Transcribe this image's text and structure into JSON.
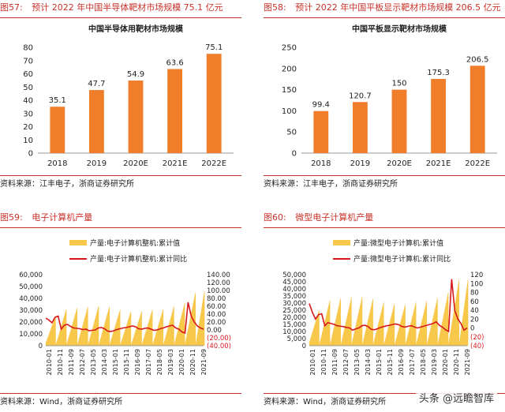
{
  "panels": [
    {
      "fig_num": "图57:",
      "fig_title": "预计 2022 年中国半导体靶材市场规模 75.1 亿元",
      "source": "资料来源：江丰电子，浙商证券研究所"
    },
    {
      "fig_num": "图58:",
      "fig_title": "预计 2022 年中国平板显示靶材市场规模 206.5 亿元",
      "source": "资料来源：江丰电子，浙商证券研究所"
    },
    {
      "fig_num": "图59:",
      "fig_title": "电子计算机产量",
      "source": "资料来源：Wind，浙商证券研究所"
    },
    {
      "fig_num": "图60:",
      "fig_title": "微型电子计算机产量",
      "source": "资料来源：Wind，浙商证券研究所"
    }
  ],
  "watermark": "头条 @远瞻智库",
  "colors": {
    "bar": "#f07d2a",
    "line": "#d7191c",
    "area": "#f7c84a",
    "heading": "#c8322a"
  },
  "chart_data": [
    {
      "type": "bar",
      "title": "中国半导体用靶材市场规模",
      "categories": [
        "2018",
        "2019",
        "2020E",
        "2021E",
        "2022E"
      ],
      "values": [
        35.1,
        47.7,
        54.9,
        63.6,
        75.1
      ],
      "value_labels": [
        "35.1",
        "47.7",
        "54.9",
        "63.6",
        "75.1"
      ],
      "ylim": [
        0,
        80
      ],
      "yticks": [
        0,
        10,
        20,
        30,
        40,
        50,
        60,
        70,
        80
      ],
      "grid": false
    },
    {
      "type": "bar",
      "title": "中国平板显示靶材市场规模",
      "categories": [
        "2018",
        "2019",
        "2020E",
        "2021E",
        "2022E"
      ],
      "values": [
        99.4,
        120.7,
        150,
        175.3,
        206.5
      ],
      "value_labels": [
        "99.4",
        "120.7",
        "150",
        "175.3",
        "206.5"
      ],
      "ylim": [
        0,
        250
      ],
      "yticks": [
        0,
        50,
        100,
        150,
        200,
        250
      ],
      "grid": false
    },
    {
      "type": "area",
      "legend": [
        "产量:电子计算机整机:累计值",
        "产量:电子计算机整机:累计同比"
      ],
      "legend_position": "top",
      "x_labels": [
        "2010-01",
        "2010-11",
        "2011-09",
        "2012-07",
        "2013-05",
        "2014-03",
        "2015-01",
        "2015-11",
        "2016-09",
        "2017-07",
        "2018-05",
        "2019-03",
        "2020-01",
        "2020-11",
        "2021-09"
      ],
      "ylim_left": [
        0,
        60000
      ],
      "yticks_left": [
        "0",
        "10,000",
        "20,000",
        "30,000",
        "40,000",
        "50,000",
        "60,000"
      ],
      "ylim_right": [
        -40,
        140
      ],
      "yticks_right": [
        "(40.00)",
        "(20.00)",
        "0.00",
        "20.00",
        "40.00",
        "60.00",
        "80.00",
        "100.00",
        "120.00",
        "140.00"
      ],
      "area_year_end_values": [
        25000,
        31000,
        32000,
        33000,
        33500,
        33000,
        30500,
        29000,
        29000,
        30500,
        31000,
        33500,
        36000,
        45000
      ],
      "area_partial_last": 46000,
      "line_yoy": [
        30,
        25,
        18,
        32,
        35,
        2,
        12,
        14,
        9,
        5,
        4,
        3,
        1,
        2,
        -2,
        -1,
        0,
        5,
        6,
        3,
        -3,
        -4,
        -2,
        1,
        3,
        5,
        6,
        8,
        10,
        8,
        3,
        2,
        4,
        5,
        2,
        -1,
        0,
        3,
        5,
        8,
        10,
        12,
        5,
        2,
        -5,
        -8,
        70,
        35,
        20,
        10,
        5,
        2
      ]
    },
    {
      "type": "area",
      "legend": [
        "产量:微型电子计算机:累计值",
        "产量:微型电子计算机:累计同比"
      ],
      "legend_position": "top",
      "x_labels": [
        "2010-01",
        "2010-11",
        "2011-09",
        "2012-07",
        "2013-05",
        "2014-03",
        "2015-01",
        "2015-11",
        "2016-09",
        "2017-07",
        "2018-05",
        "2019-03",
        "2020-01",
        "2020-11",
        "2021-09"
      ],
      "ylim_left": [
        0,
        50000
      ],
      "yticks_left": [
        "0",
        "5,000",
        "10,000",
        "15,000",
        "20,000",
        "25,000",
        "30,000",
        "35,000",
        "40,000",
        "45,000",
        "50,000"
      ],
      "ylim_right": [
        -40,
        120
      ],
      "yticks_right": [
        "(40)",
        "(20)",
        "0",
        "20",
        "40",
        "60",
        "80",
        "100",
        "120"
      ],
      "area_year_end_values": [
        25000,
        32000,
        33500,
        34000,
        34500,
        33000,
        30500,
        29500,
        29000,
        30500,
        31500,
        33500,
        37500,
        46500
      ],
      "area_partial_last": 47000,
      "line_yoy": [
        55,
        35,
        20,
        30,
        32,
        5,
        12,
        10,
        8,
        5,
        4,
        3,
        1,
        0,
        -5,
        -2,
        0,
        5,
        6,
        3,
        -3,
        -4,
        -2,
        1,
        3,
        5,
        6,
        8,
        9,
        7,
        3,
        2,
        4,
        5,
        2,
        0,
        2,
        4,
        6,
        8,
        10,
        14,
        6,
        2,
        -4,
        -8,
        110,
        40,
        20,
        10,
        -5,
        0
      ]
    }
  ]
}
